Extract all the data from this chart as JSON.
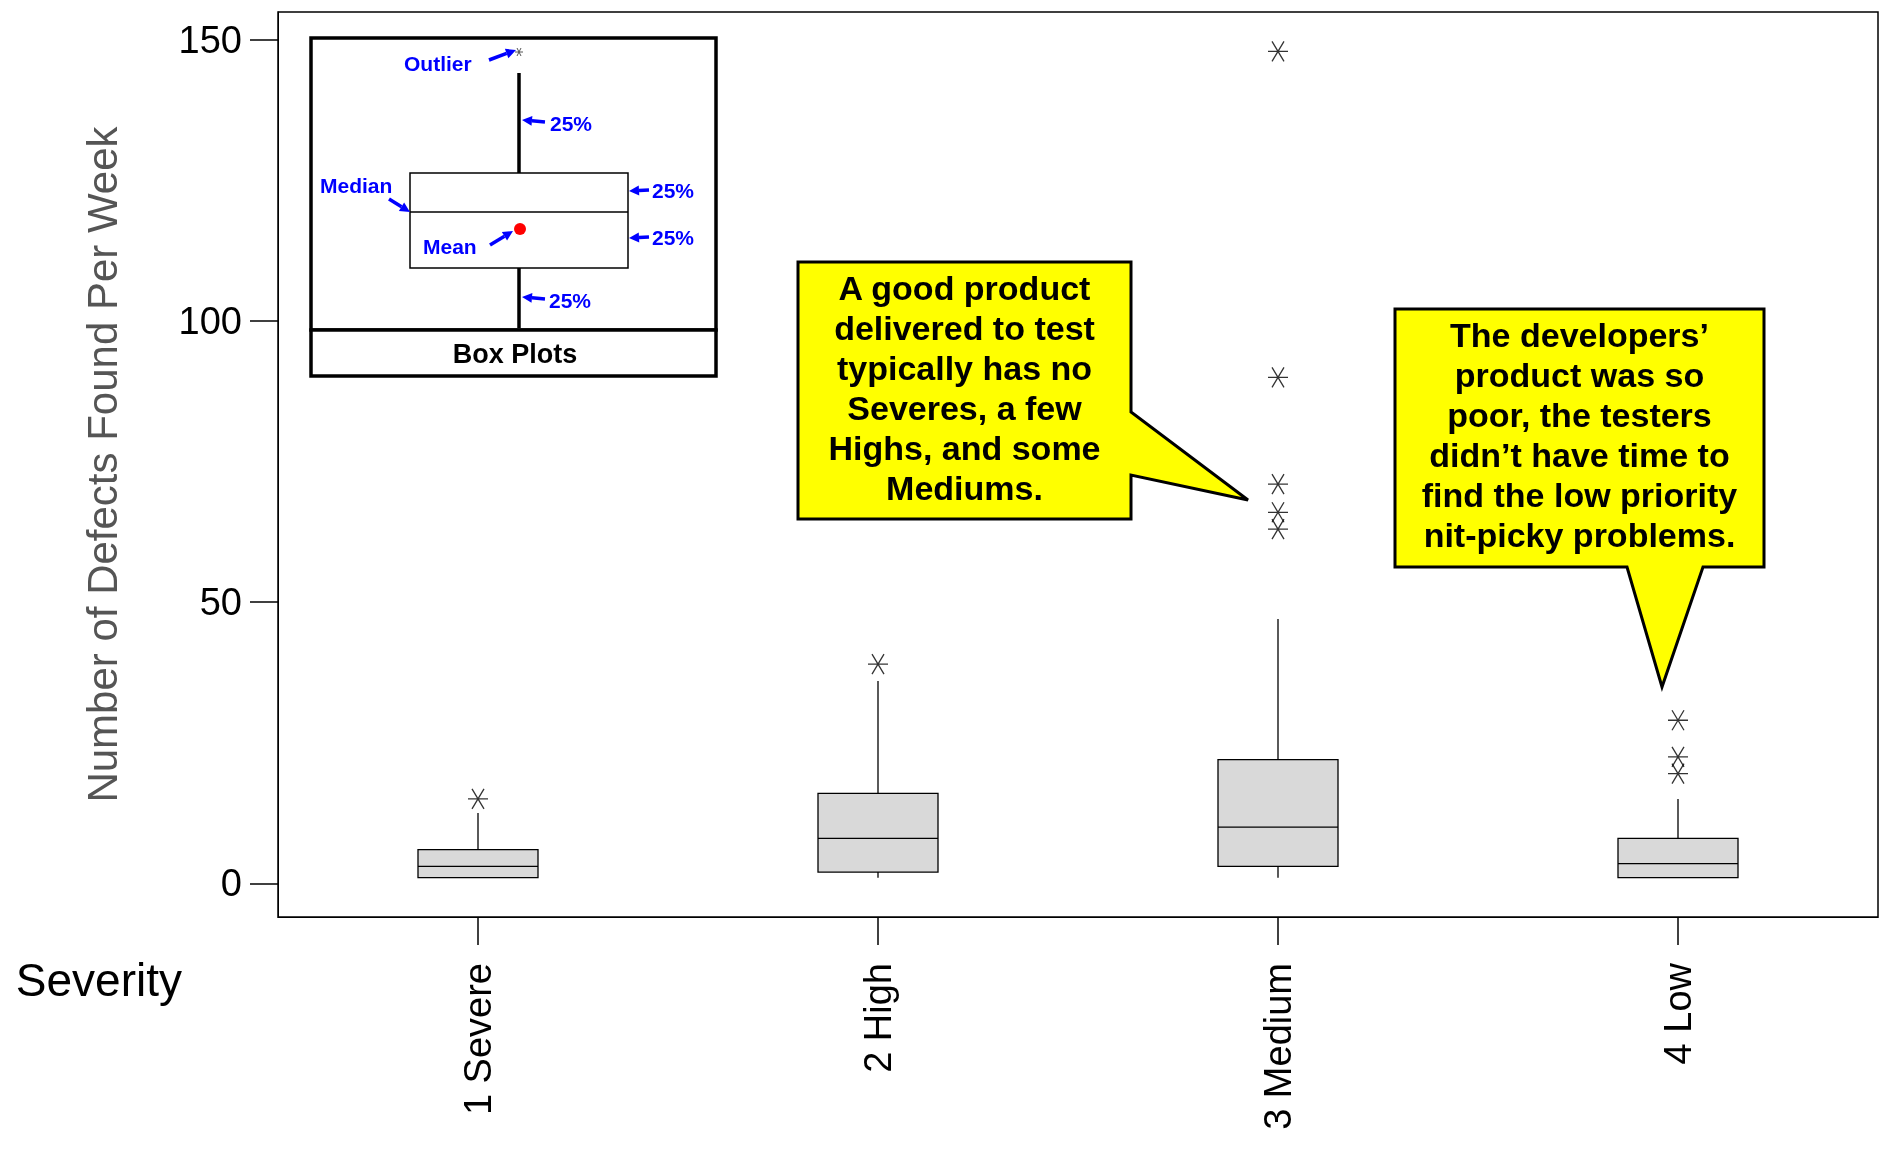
{
  "chart_data": {
    "type": "box",
    "xlabel": "Severity",
    "ylabel": "Number of Defects Found Per Week",
    "categories": [
      "1 Severe",
      "2 High",
      "3 Medium",
      "4 Low"
    ],
    "ylim": [
      -6,
      155
    ],
    "yticks": [
      0,
      50,
      100,
      150
    ],
    "grid": false,
    "series": [
      {
        "color": "#d9d9d9",
        "boxes": [
          {
            "low": 1,
            "q1": 1,
            "median": 3,
            "q3": 6,
            "high": 12.5,
            "outliers": [
              15
            ]
          },
          {
            "low": 1,
            "q1": 2,
            "median": 8,
            "q3": 16,
            "high": 36,
            "outliers": [
              39
            ]
          },
          {
            "low": 1,
            "q1": 3,
            "median": 10,
            "q3": 22,
            "high": 47,
            "outliers": [
              148,
              90,
              71,
              66,
              63
            ]
          },
          {
            "low": 1,
            "q1": 1,
            "median": 3.5,
            "q3": 8,
            "high": 15,
            "outliers": [
              29,
              22.5,
              19.5
            ]
          }
        ]
      }
    ],
    "annotations": [
      "A good product delivered to test typically has no Severes, a few Highs, and some Mediums.",
      "The developers’ product was so poor, the testers didn’t have time to find the low priority nit-picky problems.",
      "Outlier",
      "25%",
      "Median",
      "25%",
      "25%",
      "Mean",
      "25%",
      "Box Plots"
    ]
  }
}
